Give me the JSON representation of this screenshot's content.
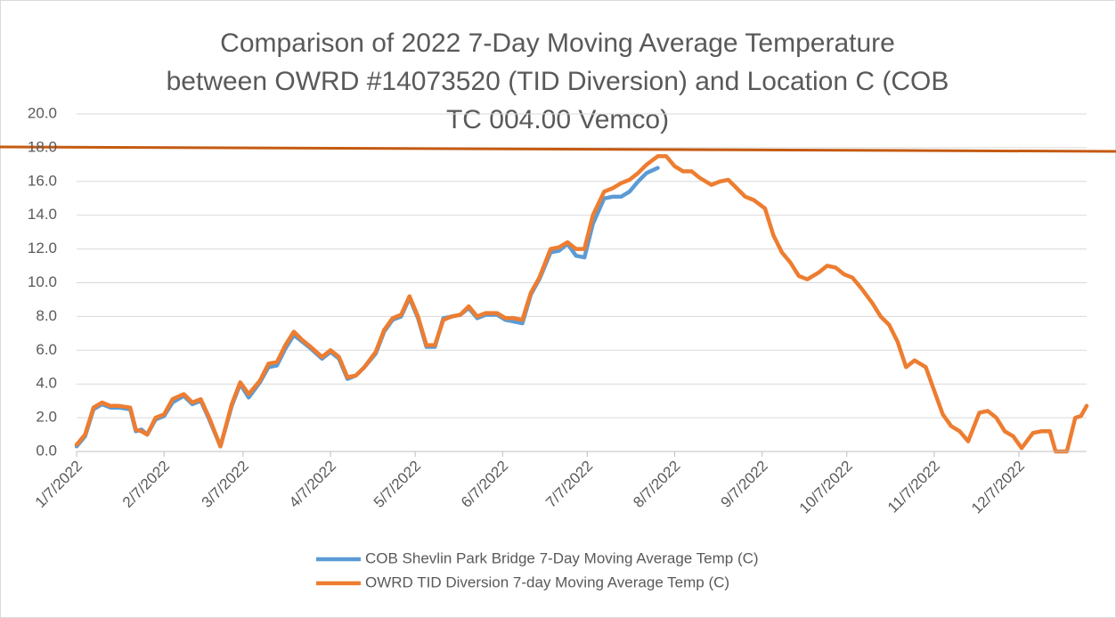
{
  "chart_data": {
    "type": "line",
    "title": [
      "Comparison of 2022 7-Day Moving Average Temperature",
      "between OWRD #14073520 (TID Diversion) and Location C (COB",
      "TC 004.00 Vemco)"
    ],
    "xlim": [
      "1/7/2022",
      "12/31/2022"
    ],
    "xticks": [
      "1/7/2022",
      "2/7/2022",
      "3/7/2022",
      "4/7/2022",
      "5/7/2022",
      "6/7/2022",
      "7/7/2022",
      "8/7/2022",
      "9/7/2022",
      "10/7/2022",
      "11/7/2022",
      "12/7/2022"
    ],
    "ylim": [
      0,
      20
    ],
    "yticks": [
      {
        "value": 0,
        "label": "0.0"
      },
      {
        "value": 2,
        "label": "2.0"
      },
      {
        "value": 4,
        "label": "4.0"
      },
      {
        "value": 6,
        "label": "6.0"
      },
      {
        "value": 8,
        "label": "8.0"
      },
      {
        "value": 10,
        "label": "10.0"
      },
      {
        "value": 12,
        "label": "12.0"
      },
      {
        "value": 14,
        "label": "14.0"
      },
      {
        "value": 16,
        "label": "16.0"
      },
      {
        "value": 18,
        "label": "18.0"
      },
      {
        "value": 20,
        "label": "20.0"
      }
    ],
    "grid": true,
    "legend": "bottom",
    "series": [
      {
        "name": "COB Shevlin Park Bridge 7-Day Moving Average Temp (C)",
        "color": "#5b9bd5",
        "x": [
          "1/7/2022",
          "1/10/2022",
          "1/13/2022",
          "1/16/2022",
          "1/19/2022",
          "1/22/2022",
          "1/26/2022",
          "1/28/2022",
          "1/30/2022",
          "2/1/2022",
          "2/4/2022",
          "2/7/2022",
          "2/10/2022",
          "2/14/2022",
          "2/17/2022",
          "2/20/2022",
          "2/23/2022",
          "2/27/2022",
          "3/3/2022",
          "3/6/2022",
          "3/9/2022",
          "3/13/2022",
          "3/16/2022",
          "3/19/2022",
          "3/22/2022",
          "3/25/2022",
          "3/28/2022",
          "3/31/2022",
          "4/4/2022",
          "4/7/2022",
          "4/10/2022",
          "4/13/2022",
          "4/16/2022",
          "4/19/2022",
          "4/23/2022",
          "4/26/2022",
          "4/29/2022",
          "5/2/2022",
          "5/5/2022",
          "5/8/2022",
          "5/11/2022",
          "5/14/2022",
          "5/17/2022",
          "5/20/2022",
          "5/23/2022",
          "5/26/2022",
          "5/29/2022",
          "6/1/2022",
          "6/5/2022",
          "6/8/2022",
          "6/11/2022",
          "6/14/2022",
          "6/17/2022",
          "6/20/2022",
          "6/24/2022",
          "6/27/2022",
          "6/30/2022",
          "7/3/2022",
          "7/6/2022",
          "7/9/2022",
          "7/13/2022",
          "7/16/2022",
          "7/19/2022",
          "7/22/2022",
          "7/25/2022",
          "7/28/2022",
          "8/1/2022"
        ],
        "values": [
          0.3,
          0.9,
          2.5,
          2.8,
          2.6,
          2.6,
          2.5,
          1.2,
          1.3,
          1.0,
          1.9,
          2.1,
          2.9,
          3.3,
          2.8,
          3.0,
          1.9,
          0.3,
          2.7,
          4.0,
          3.2,
          4.1,
          5.0,
          5.1,
          6.1,
          6.9,
          6.5,
          6.1,
          5.5,
          5.9,
          5.5,
          4.3,
          4.5,
          5.0,
          5.8,
          7.1,
          7.8,
          8.0,
          9.1,
          7.9,
          6.2,
          6.2,
          7.9,
          8.0,
          8.1,
          8.5,
          7.9,
          8.1,
          8.1,
          7.8,
          7.7,
          7.6,
          9.3,
          10.2,
          11.8,
          11.9,
          12.3,
          11.6,
          11.5,
          13.5,
          15.0,
          15.1,
          15.1,
          15.4,
          16.0,
          16.5,
          16.8
        ]
      },
      {
        "name": "OWRD TID Diversion 7-day Moving Average Temp (C)",
        "color": "#ed7d31",
        "x": [
          "1/7/2022",
          "1/10/2022",
          "1/13/2022",
          "1/16/2022",
          "1/19/2022",
          "1/22/2022",
          "1/26/2022",
          "1/28/2022",
          "1/30/2022",
          "2/1/2022",
          "2/4/2022",
          "2/7/2022",
          "2/10/2022",
          "2/14/2022",
          "2/17/2022",
          "2/20/2022",
          "2/23/2022",
          "2/27/2022",
          "3/3/2022",
          "3/6/2022",
          "3/9/2022",
          "3/13/2022",
          "3/16/2022",
          "3/19/2022",
          "3/22/2022",
          "3/25/2022",
          "3/28/2022",
          "3/31/2022",
          "4/4/2022",
          "4/7/2022",
          "4/10/2022",
          "4/13/2022",
          "4/16/2022",
          "4/19/2022",
          "4/23/2022",
          "4/26/2022",
          "4/29/2022",
          "5/2/2022",
          "5/5/2022",
          "5/8/2022",
          "5/11/2022",
          "5/14/2022",
          "5/17/2022",
          "5/20/2022",
          "5/23/2022",
          "5/26/2022",
          "5/29/2022",
          "6/1/2022",
          "6/5/2022",
          "6/8/2022",
          "6/11/2022",
          "6/14/2022",
          "6/17/2022",
          "6/20/2022",
          "6/24/2022",
          "6/27/2022",
          "6/30/2022",
          "7/3/2022",
          "7/6/2022",
          "7/9/2022",
          "7/13/2022",
          "7/16/2022",
          "7/19/2022",
          "7/22/2022",
          "7/25/2022",
          "7/28/2022",
          "8/1/2022",
          "8/4/2022",
          "8/7/2022",
          "8/10/2022",
          "8/13/2022",
          "8/16/2022",
          "8/20/2022",
          "8/23/2022",
          "8/26/2022",
          "8/29/2022",
          "9/1/2022",
          "9/4/2022",
          "9/8/2022",
          "9/11/2022",
          "9/14/2022",
          "9/17/2022",
          "9/20/2022",
          "9/23/2022",
          "9/27/2022",
          "9/30/2022",
          "10/3/2022",
          "10/6/2022",
          "10/9/2022",
          "10/12/2022",
          "10/16/2022",
          "10/19/2022",
          "10/22/2022",
          "10/25/2022",
          "10/28/2022",
          "10/31/2022",
          "11/4/2022",
          "11/7/2022",
          "11/10/2022",
          "11/13/2022",
          "11/16/2022",
          "11/19/2022",
          "11/23/2022",
          "11/26/2022",
          "11/29/2022",
          "12/2/2022",
          "12/5/2022",
          "12/8/2022",
          "12/12/2022",
          "12/15/2022",
          "12/18/2022",
          "12/20/2022",
          "12/24/2022",
          "12/27/2022",
          "12/29/2022",
          "12/31/2022"
        ],
        "values": [
          0.4,
          1.0,
          2.6,
          2.9,
          2.7,
          2.7,
          2.6,
          1.3,
          1.2,
          1.0,
          2.0,
          2.2,
          3.1,
          3.4,
          2.9,
          3.1,
          2.0,
          0.3,
          2.8,
          4.1,
          3.4,
          4.2,
          5.2,
          5.3,
          6.3,
          7.1,
          6.6,
          6.2,
          5.6,
          6.0,
          5.6,
          4.4,
          4.5,
          5.0,
          5.9,
          7.2,
          7.9,
          8.1,
          9.2,
          8.0,
          6.3,
          6.3,
          7.8,
          8.0,
          8.1,
          8.6,
          8.0,
          8.2,
          8.2,
          7.9,
          7.9,
          7.8,
          9.4,
          10.3,
          12.0,
          12.1,
          12.4,
          12.0,
          12.0,
          14.0,
          15.4,
          15.6,
          15.9,
          16.1,
          16.5,
          17.0,
          17.5,
          17.5,
          16.9,
          16.6,
          16.6,
          16.2,
          15.8,
          16.0,
          16.1,
          15.6,
          15.1,
          14.9,
          14.4,
          12.8,
          11.8,
          11.2,
          10.4,
          10.2,
          10.6,
          11.0,
          10.9,
          10.5,
          10.3,
          9.7,
          8.8,
          8.0,
          7.5,
          6.5,
          5.0,
          5.4,
          5.0,
          3.6,
          2.2,
          1.5,
          1.2,
          0.6,
          2.3,
          2.4,
          2.0,
          1.2,
          0.9,
          0.2,
          1.1,
          1.2,
          1.2,
          0.0,
          0.0,
          2.0,
          2.1,
          2.7
        ]
      }
    ]
  }
}
